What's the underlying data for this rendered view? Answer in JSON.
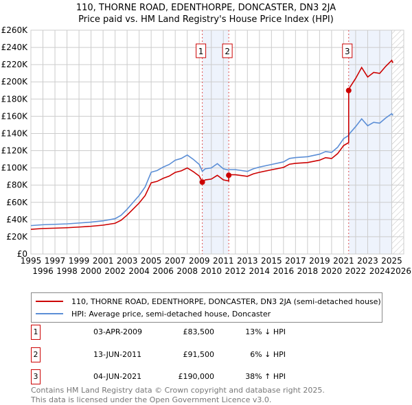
{
  "title": "110, THORNE ROAD, EDENTHORPE, DONCASTER, DN3 2JA",
  "subtitle": "Price paid vs. HM Land Registry's House Price Index (HPI)",
  "chart_data": {
    "type": "line",
    "xlim": [
      1995,
      2026
    ],
    "ylim": [
      0,
      260000
    ],
    "x_ticks": [
      "1995",
      "1996",
      "1997",
      "1998",
      "1999",
      "2000",
      "2001",
      "2002",
      "2003",
      "2004",
      "2005",
      "2006",
      "2007",
      "2008",
      "2009",
      "2010",
      "2011",
      "2012",
      "2013",
      "2014",
      "2015",
      "2016",
      "2017",
      "2018",
      "2019",
      "2020",
      "2021",
      "2022",
      "2023",
      "2024",
      "2025",
      "2026"
    ],
    "y_ticks": [
      {
        "v": 0,
        "label": "£0"
      },
      {
        "v": 20000,
        "label": "£20K"
      },
      {
        "v": 40000,
        "label": "£40K"
      },
      {
        "v": 60000,
        "label": "£60K"
      },
      {
        "v": 80000,
        "label": "£80K"
      },
      {
        "v": 100000,
        "label": "£100K"
      },
      {
        "v": 120000,
        "label": "£120K"
      },
      {
        "v": 140000,
        "label": "£140K"
      },
      {
        "v": 160000,
        "label": "£160K"
      },
      {
        "v": 180000,
        "label": "£180K"
      },
      {
        "v": 200000,
        "label": "£200K"
      },
      {
        "v": 220000,
        "label": "£220K"
      },
      {
        "v": 240000,
        "label": "£240K"
      },
      {
        "v": 260000,
        "label": "£260K"
      }
    ],
    "series": [
      {
        "name": "110, THORNE ROAD, EDENTHORPE, DONCASTER, DN3 2JA (semi-detached house)",
        "color": "#cc0000",
        "x": [
          1995,
          1996,
          1997,
          1998,
          1999,
          2000,
          2001,
          2002,
          2002.5,
          2003,
          2003.5,
          2004,
          2004.5,
          2005,
          2005.5,
          2006,
          2006.5,
          2007,
          2007.5,
          2008,
          2008.5,
          2009,
          2009.25,
          2009.5,
          2010,
          2010.5,
          2011,
          2011.45,
          2011.45,
          2011.5,
          2012,
          2012.5,
          2013,
          2013.5,
          2014,
          2015,
          2016,
          2016.5,
          2017,
          2018,
          2019,
          2019.5,
          2020,
          2020.5,
          2021,
          2021.42,
          2021.42,
          2021.5,
          2022,
          2022.5,
          2023,
          2023.5,
          2024,
          2024.5,
          2025,
          2025.1
        ],
        "y": [
          28700,
          29600,
          30000,
          30500,
          31300,
          32200,
          33500,
          35700,
          39200,
          45200,
          52200,
          59200,
          67900,
          82700,
          84400,
          87900,
          90500,
          94800,
          96600,
          100000,
          95700,
          90500,
          83500,
          86100,
          87000,
          91400,
          86100,
          84800,
          91500,
          92100,
          92100,
          91200,
          90200,
          93100,
          94900,
          97800,
          100600,
          104300,
          105300,
          106200,
          109000,
          111900,
          110900,
          116600,
          126000,
          129400,
          190000,
          193200,
          204000,
          216700,
          205600,
          211000,
          209800,
          218000,
          225000,
          222000
        ]
      },
      {
        "name": "HPI: Average price, semi-detached house, Doncaster",
        "color": "#5b8ed6",
        "x": [
          1995,
          1996,
          1997,
          1998,
          1999,
          2000,
          2001,
          2002,
          2002.5,
          2003,
          2003.5,
          2004,
          2004.5,
          2005,
          2005.5,
          2006,
          2006.5,
          2007,
          2007.5,
          2008,
          2008.5,
          2009,
          2009.25,
          2009.5,
          2010,
          2010.5,
          2011,
          2011.45,
          2011.5,
          2012,
          2012.5,
          2013,
          2013.5,
          2014,
          2015,
          2016,
          2016.5,
          2017,
          2018,
          2019,
          2019.5,
          2020,
          2020.5,
          2021,
          2021.42,
          2021.5,
          2022,
          2022.5,
          2023,
          2023.5,
          2024,
          2024.5,
          2025,
          2025.1
        ],
        "y": [
          33000,
          34000,
          34500,
          35000,
          36000,
          37000,
          38500,
          41000,
          45000,
          52000,
          60000,
          68000,
          78000,
          95000,
          97000,
          101000,
          104000,
          109000,
          111000,
          115000,
          110000,
          104000,
          96000,
          99000,
          100000,
          105000,
          99000,
          97500,
          98000,
          98000,
          97000,
          96000,
          99000,
          101000,
          104000,
          107000,
          111000,
          112000,
          113000,
          116000,
          119000,
          118000,
          124000,
          134000,
          137700,
          140000,
          148000,
          157000,
          149000,
          153000,
          152000,
          158000,
          163000,
          161000
        ]
      }
    ],
    "sales": [
      {
        "label": "1",
        "x": 2009.25,
        "price": 83500,
        "date": "03-APR-2009",
        "price_text": "£83,500",
        "hpi_text": "13% ↓ HPI"
      },
      {
        "label": "2",
        "x": 2011.45,
        "price": 91500,
        "date": "13-JUN-2011",
        "price_text": "£91,500",
        "hpi_text": "6% ↓ HPI"
      },
      {
        "label": "3",
        "x": 2021.42,
        "price": 190000,
        "date": "04-JUN-2021",
        "price_text": "£190,000",
        "hpi_text": "38% ↑ HPI"
      }
    ],
    "shaded": [
      [
        2009.25,
        2011.45
      ],
      [
        2021.42,
        2025.0
      ]
    ],
    "hatched_from": 2025.0
  },
  "footer": [
    "Contains HM Land Registry data © Crown copyright and database right 2025.",
    "This data is licensed under the Open Government Licence v3.0."
  ]
}
